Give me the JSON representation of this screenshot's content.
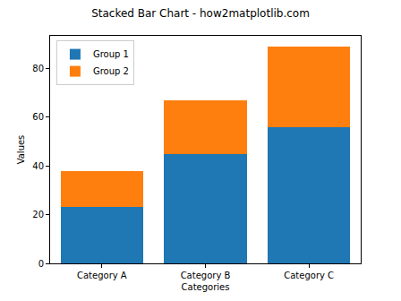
{
  "chart_data": {
    "type": "bar",
    "title": "Stacked Bar Chart - how2matplotlib.com",
    "x_label": "Categories",
    "y_label": "Values",
    "categories": [
      "Category A",
      "Category B",
      "Category C"
    ],
    "series": [
      {
        "name": "Group 1",
        "color": "#1f77b4",
        "values": [
          23,
          45,
          56
        ]
      },
      {
        "name": "Group 2",
        "color": "#ff7f0e",
        "values": [
          15,
          22,
          33
        ]
      }
    ],
    "stacked": true,
    "ylim": [
      0,
      93.45
    ],
    "yticks": [
      0,
      20,
      40,
      60,
      80
    ],
    "legend": "upper left",
    "grid": false
  }
}
